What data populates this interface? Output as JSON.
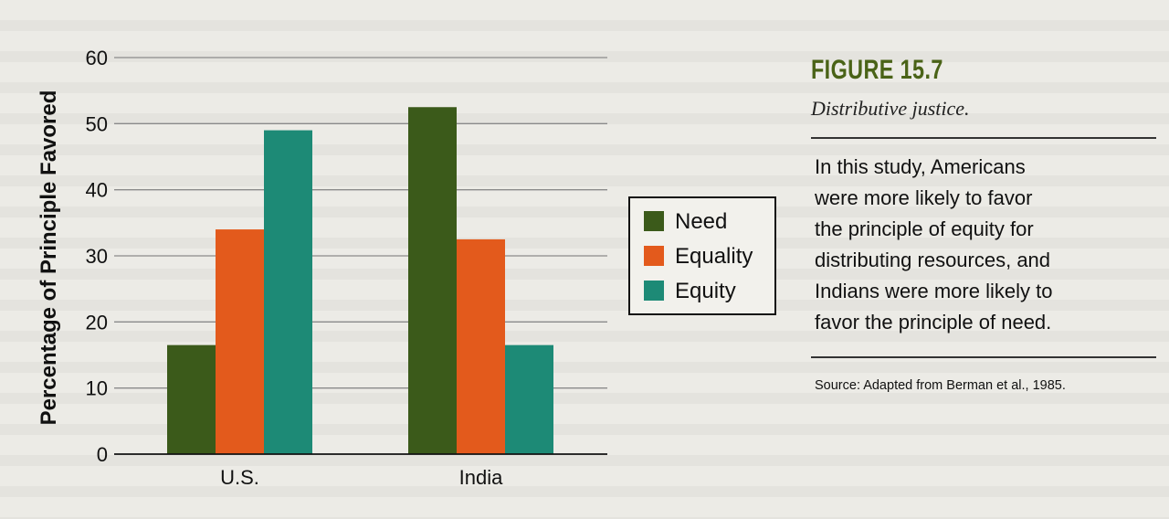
{
  "figure": {
    "title": "FIGURE 15.7",
    "subtitle": "Distributive justice.",
    "body": "In this study, Americans\nwere more likely to favor\nthe principle of equity for\ndistributing resources, and\nIndians were more likely to\nfavor the principle of need.",
    "source": "Source: Adapted from Berman et al., 1985."
  },
  "chart_data": {
    "type": "bar",
    "title": "",
    "xlabel": "",
    "ylabel": "Percentage of Principle Favored",
    "categories": [
      "U.S.",
      "India"
    ],
    "series": [
      {
        "name": "Need",
        "values": [
          16.5,
          52.5
        ],
        "color": "#3b5a1a"
      },
      {
        "name": "Equality",
        "values": [
          34,
          32.5
        ],
        "color": "#e35a1c"
      },
      {
        "name": "Equity",
        "values": [
          49,
          16.5
        ],
        "color": "#1d8a76"
      }
    ],
    "ylim": [
      0,
      60
    ],
    "yticks": [
      0,
      10,
      20,
      30,
      40,
      50,
      60
    ],
    "grid": true,
    "legend_position": "right"
  }
}
